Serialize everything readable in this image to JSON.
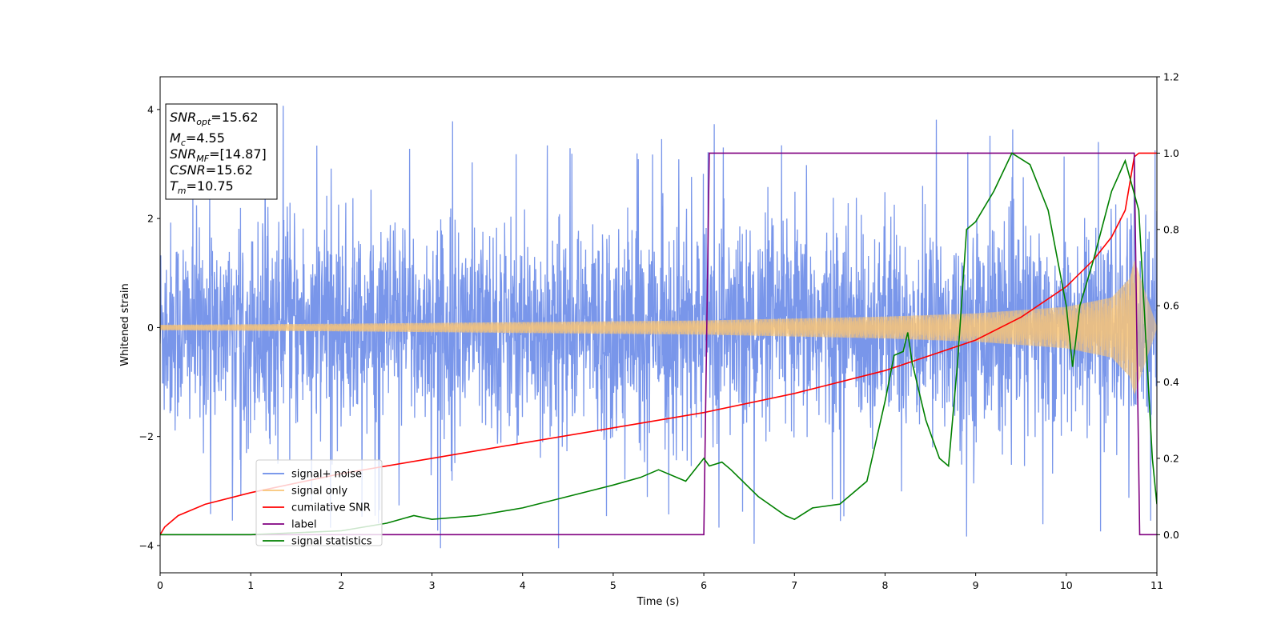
{
  "chart_data": {
    "type": "line",
    "xlabel": "Time (s)",
    "ylabel": "Whitened strain",
    "xlim": [
      0,
      11
    ],
    "ylim": [
      -4.5,
      4.6
    ],
    "y2lim": [
      -0.1,
      1.2
    ],
    "x_ticks": [
      "0",
      "1",
      "2",
      "3",
      "4",
      "5",
      "6",
      "7",
      "8",
      "9",
      "10",
      "11"
    ],
    "y_ticks": [
      "4",
      "2",
      "0",
      "−2",
      "−4"
    ],
    "y2_ticks": [
      "1.2",
      "1.0",
      "0.8",
      "0.6",
      "0.4",
      "0.2",
      "0.0"
    ],
    "legend_placement": "lower-left",
    "annotation": {
      "snr_opt": {
        "base": "SNR",
        "sub": "opt",
        "value": "=15.62"
      },
      "mc": {
        "base": "M",
        "sub": "c",
        "value": "=4.55"
      },
      "snr_mf": {
        "base": "SNR",
        "sub": "MF",
        "value": "=[14.87]"
      },
      "csnr": {
        "base": "CSNR",
        "sub": "",
        "value": "=15.62"
      },
      "tm": {
        "base": "T",
        "sub": "m",
        "value": "=10.75"
      }
    },
    "series": [
      {
        "name": "signal+ noise",
        "axis": "left",
        "color": "#6a8be8",
        "description_values": {
          "amplitude_std": 1.0,
          "peak_max": 4.15,
          "peak_min": -4.05
        }
      },
      {
        "name": "signal only",
        "axis": "left",
        "color": "#f8c477",
        "envelope": {
          "x": [
            0,
            2,
            4,
            6,
            8,
            9,
            10,
            10.5,
            10.7,
            10.75,
            11
          ],
          "y": [
            0.05,
            0.07,
            0.1,
            0.13,
            0.2,
            0.26,
            0.38,
            0.55,
            0.9,
            1.25,
            0.02
          ]
        }
      },
      {
        "name": "cumilative SNR",
        "axis": "right",
        "color": "#ff0000",
        "x": [
          0,
          0.05,
          0.2,
          0.5,
          1,
          2,
          3,
          4,
          5,
          6,
          7,
          8,
          8.5,
          9,
          9.5,
          10,
          10.3,
          10.5,
          10.65,
          10.75,
          10.8,
          11
        ],
        "y": [
          0.0,
          0.02,
          0.05,
          0.08,
          0.11,
          0.16,
          0.2,
          0.24,
          0.28,
          0.32,
          0.37,
          0.43,
          0.47,
          0.51,
          0.57,
          0.65,
          0.72,
          0.78,
          0.85,
          0.99,
          1.0,
          1.0
        ]
      },
      {
        "name": "label",
        "axis": "right",
        "color": "#800080",
        "x": [
          0,
          6.0,
          6.06,
          10.75,
          10.81,
          11
        ],
        "y": [
          0,
          0,
          1,
          1,
          0,
          0
        ]
      },
      {
        "name": "signal statistics",
        "axis": "right",
        "color": "#008000",
        "x": [
          0,
          1,
          2,
          2.5,
          2.8,
          3,
          3.5,
          4,
          4.5,
          5,
          5.3,
          5.5,
          5.8,
          6.0,
          6.06,
          6.2,
          6.3,
          6.6,
          6.9,
          7.0,
          7.2,
          7.5,
          7.8,
          8.0,
          8.1,
          8.2,
          8.25,
          8.3,
          8.45,
          8.6,
          8.7,
          8.8,
          8.9,
          9.0,
          9.2,
          9.4,
          9.6,
          9.8,
          10.0,
          10.07,
          10.15,
          10.3,
          10.5,
          10.65,
          10.8,
          10.95,
          11.0
        ],
        "y": [
          0,
          0,
          0.01,
          0.03,
          0.05,
          0.04,
          0.05,
          0.07,
          0.1,
          0.13,
          0.15,
          0.17,
          0.14,
          0.2,
          0.18,
          0.19,
          0.17,
          0.1,
          0.05,
          0.04,
          0.07,
          0.08,
          0.14,
          0.35,
          0.47,
          0.48,
          0.53,
          0.45,
          0.3,
          0.2,
          0.18,
          0.45,
          0.8,
          0.82,
          0.9,
          1.0,
          0.97,
          0.85,
          0.6,
          0.44,
          0.6,
          0.72,
          0.9,
          0.98,
          0.85,
          0.2,
          0.08
        ]
      }
    ]
  }
}
